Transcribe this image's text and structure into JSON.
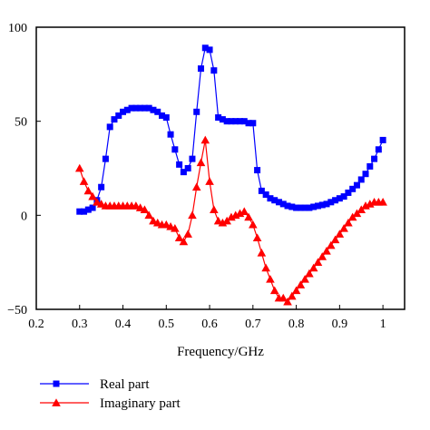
{
  "chart_data": {
    "type": "line",
    "xlabel": "Frequency/GHz",
    "ylabel": "",
    "xlim": [
      0.2,
      1.05
    ],
    "ylim": [
      -50,
      100
    ],
    "x_ticks": [
      "0.2",
      "0.3",
      "0.4",
      "0.5",
      "0.6",
      "0.7",
      "0.8",
      "0.9",
      "1"
    ],
    "y_ticks": [
      "100",
      "50",
      "0",
      "−50"
    ],
    "grid": false,
    "legend_position": "bottom-left",
    "series": [
      {
        "name": "Real part",
        "color": "#0000ff",
        "marker": "square",
        "x": [
          0.3,
          0.31,
          0.32,
          0.33,
          0.34,
          0.35,
          0.36,
          0.37,
          0.38,
          0.39,
          0.4,
          0.41,
          0.42,
          0.43,
          0.44,
          0.45,
          0.46,
          0.47,
          0.48,
          0.49,
          0.5,
          0.51,
          0.52,
          0.53,
          0.54,
          0.55,
          0.56,
          0.57,
          0.58,
          0.59,
          0.6,
          0.61,
          0.62,
          0.63,
          0.64,
          0.65,
          0.66,
          0.67,
          0.68,
          0.69,
          0.7,
          0.71,
          0.72,
          0.73,
          0.74,
          0.75,
          0.76,
          0.77,
          0.78,
          0.79,
          0.8,
          0.81,
          0.82,
          0.83,
          0.84,
          0.85,
          0.86,
          0.87,
          0.88,
          0.89,
          0.9,
          0.91,
          0.92,
          0.93,
          0.94,
          0.95,
          0.96,
          0.97,
          0.98,
          0.99,
          1.0
        ],
        "y": [
          2,
          2,
          3,
          4,
          8,
          15,
          30,
          47,
          51,
          53,
          55,
          56,
          57,
          57,
          57,
          57,
          57,
          56,
          55,
          53,
          52,
          43,
          35,
          27,
          23,
          25,
          30,
          55,
          78,
          89,
          88,
          77,
          52,
          51,
          50,
          50,
          50,
          50,
          50,
          49,
          49,
          24,
          13,
          11,
          9,
          8,
          7,
          6,
          5,
          4.5,
          4,
          4,
          4,
          4,
          4.5,
          5,
          5.5,
          6,
          7,
          8,
          9,
          10,
          12,
          14,
          16,
          19,
          22,
          26,
          30,
          35,
          40
        ]
      },
      {
        "name": "Imaginary part",
        "color": "#ff0000",
        "marker": "triangle",
        "x": [
          0.3,
          0.31,
          0.32,
          0.33,
          0.34,
          0.35,
          0.36,
          0.37,
          0.38,
          0.39,
          0.4,
          0.41,
          0.42,
          0.43,
          0.44,
          0.45,
          0.46,
          0.47,
          0.48,
          0.49,
          0.5,
          0.51,
          0.52,
          0.53,
          0.54,
          0.55,
          0.56,
          0.57,
          0.58,
          0.59,
          0.6,
          0.61,
          0.62,
          0.63,
          0.64,
          0.65,
          0.66,
          0.67,
          0.68,
          0.69,
          0.7,
          0.71,
          0.72,
          0.73,
          0.74,
          0.75,
          0.76,
          0.77,
          0.78,
          0.79,
          0.8,
          0.81,
          0.82,
          0.83,
          0.84,
          0.85,
          0.86,
          0.87,
          0.88,
          0.89,
          0.9,
          0.91,
          0.92,
          0.93,
          0.94,
          0.95,
          0.96,
          0.97,
          0.98,
          0.99,
          1.0
        ],
        "y": [
          25,
          18,
          13,
          10,
          7,
          6,
          5,
          5,
          5,
          5,
          5,
          5,
          5,
          5,
          4,
          3,
          0,
          -3,
          -4,
          -5,
          -5,
          -6,
          -7,
          -12,
          -14,
          -10,
          0,
          15,
          28,
          40,
          18,
          3,
          -3,
          -4,
          -3,
          -1,
          0,
          1,
          2,
          -1,
          -5,
          -12,
          -20,
          -28,
          -34,
          -40,
          -44,
          -44,
          -46,
          -43,
          -40,
          -37,
          -34,
          -31,
          -28,
          -25,
          -22,
          -19,
          -16,
          -13,
          -10,
          -7,
          -4,
          -1,
          1,
          3,
          5,
          6,
          7,
          7,
          7
        ]
      }
    ]
  }
}
